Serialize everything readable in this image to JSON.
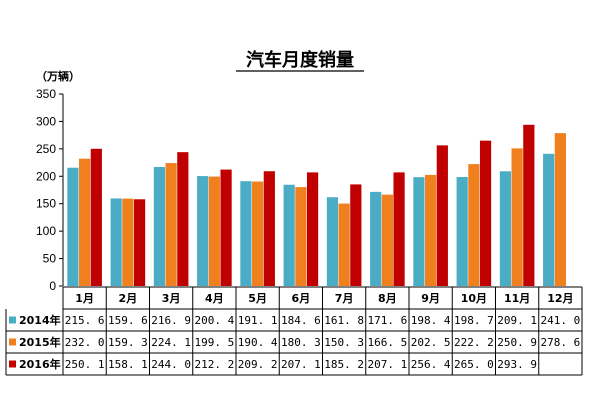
{
  "colors": {
    "s2014": "#4BACC6",
    "s2015": "#F07F1E",
    "s2016": "#C00000"
  },
  "chart_data": {
    "type": "bar",
    "title": "汽车月度销量",
    "ylabel": "（万辆）",
    "xlabel": "",
    "ylim": [
      0,
      350
    ],
    "yticks": [
      0,
      50,
      100,
      150,
      200,
      250,
      300,
      350
    ],
    "ytick_labels": [
      "0",
      "50",
      "100",
      "150",
      "200",
      "250",
      "300",
      "350"
    ],
    "grid": false,
    "legend": "data-table",
    "categories": [
      "1月",
      "2月",
      "3月",
      "4月",
      "5月",
      "6月",
      "7月",
      "8月",
      "9月",
      "10月",
      "11月",
      "12月"
    ],
    "series": [
      {
        "name": "2014年",
        "values": [
          215.6,
          159.6,
          216.9,
          200.4,
          191.1,
          184.6,
          161.8,
          171.6,
          198.4,
          198.7,
          209.1,
          241.0
        ],
        "labels": [
          "215. 6",
          "159. 6",
          "216. 9",
          "200. 4",
          "191. 1",
          "184. 6",
          "161. 8",
          "171. 6",
          "198. 4",
          "198. 7",
          "209. 1",
          "241. 0"
        ]
      },
      {
        "name": "2015年",
        "values": [
          232.0,
          159.3,
          224.1,
          199.5,
          190.4,
          180.3,
          150.3,
          166.5,
          202.5,
          222.2,
          250.9,
          278.6
        ],
        "labels": [
          "232. 0",
          "159. 3",
          "224. 1",
          "199. 5",
          "190. 4",
          "180. 3",
          "150. 3",
          "166. 5",
          "202. 5",
          "222. 2",
          "250. 9",
          "278. 6"
        ]
      },
      {
        "name": "2016年",
        "values": [
          250.1,
          158.1,
          244.0,
          212.2,
          209.2,
          207.1,
          185.2,
          207.1,
          256.4,
          265.0,
          293.9,
          null
        ],
        "labels": [
          "250. 1",
          "158. 1",
          "244. 0",
          "212. 2",
          "209. 2",
          "207. 1",
          "185. 2",
          "207. 1",
          "256. 4",
          "265. 0",
          "293. 9",
          ""
        ]
      }
    ]
  }
}
